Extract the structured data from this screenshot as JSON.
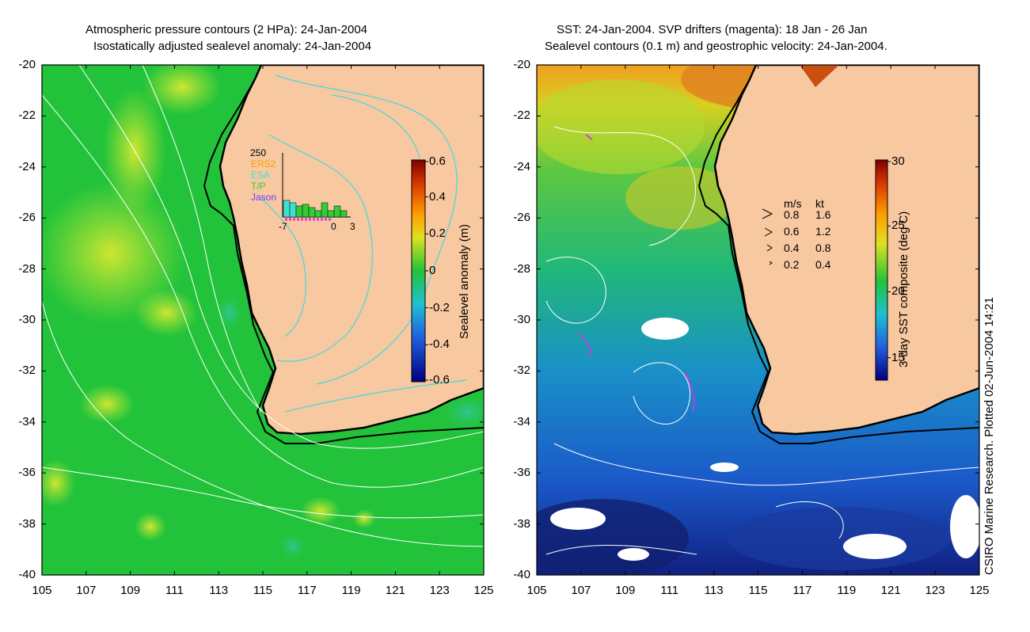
{
  "left_panel": {
    "title_line1": "Atmospheric pressure contours (2 HPa): 24-Jan-2004",
    "title_line2": "Isostatically adjusted sealevel anomaly: 24-Jan-2004",
    "y_ticks": [
      "-20",
      "-22",
      "-24",
      "-26",
      "-28",
      "-30",
      "-32",
      "-34",
      "-36",
      "-38",
      "-40"
    ],
    "x_ticks": [
      "105",
      "107",
      "109",
      "111",
      "113",
      "115",
      "117",
      "119",
      "121",
      "123",
      "125"
    ],
    "colorbar_label": "Sealevel anomaly (m)",
    "colorbar_ticks": [
      "0.6",
      "0.4",
      "0.2",
      "0",
      "-0.2",
      "-0.4",
      "-0.6"
    ],
    "histogram": {
      "max_label": "250",
      "legend": [
        "ERS2",
        "ESA",
        "T/P",
        "Jason"
      ],
      "legend_colors": [
        "#f4a000",
        "#40e0d0",
        "#33cc33",
        "#6a3dff"
      ],
      "x_labels": [
        "-7",
        "0",
        "3"
      ]
    }
  },
  "right_panel": {
    "title_line1": "SST: 24-Jan-2004. SVP drifters (magenta): 18 Jan - 26 Jan",
    "title_line2": "Sealevel contours (0.1 m) and geostrophic velocity: 24-Jan-2004.",
    "y_ticks": [
      "-20",
      "-22",
      "-24",
      "-26",
      "-28",
      "-30",
      "-32",
      "-34",
      "-36",
      "-38",
      "-40"
    ],
    "x_ticks": [
      "105",
      "107",
      "109",
      "111",
      "113",
      "115",
      "117",
      "119",
      "121",
      "123",
      "125"
    ],
    "colorbar_label": "3-day SST composite (deg C)",
    "colorbar_ticks": [
      "30",
      "25",
      "20",
      "15"
    ],
    "velocity_legend": {
      "header_ms": "m/s",
      "header_kt": "kt",
      "rows": [
        {
          "ms": "0.8",
          "kt": "1.6"
        },
        {
          "ms": "0.6",
          "kt": "1.2"
        },
        {
          "ms": "0.4",
          "kt": "0.8"
        },
        {
          "ms": "0.2",
          "kt": "0.4"
        }
      ]
    }
  },
  "credit": "CSIRO Marine Research. Plotted 02-Jun-2004 14:21",
  "colors": {
    "land": "#f8c8a0",
    "ocean_green": "#22c33a",
    "anomaly_yellow": "#b8e838",
    "contour_cyan": "#44d8e0",
    "sst_blue": "#1a78d8",
    "sst_dark": "#102080"
  }
}
